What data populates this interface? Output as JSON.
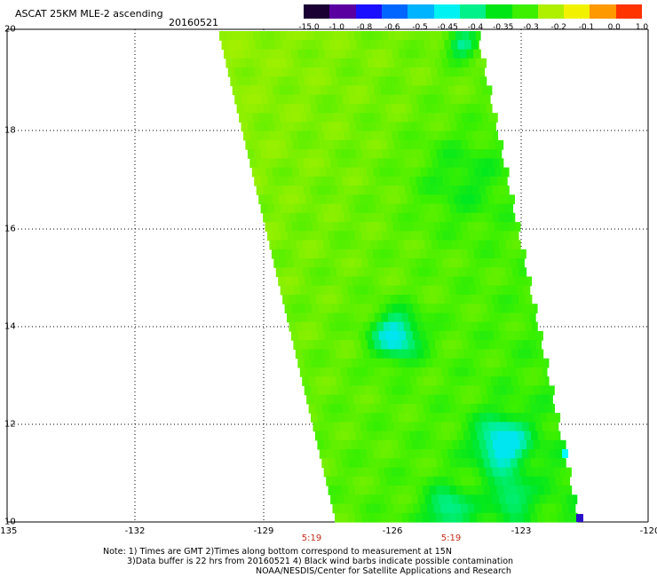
{
  "title": "ASCAT 25KM MLE-2 ascending",
  "date": "20160521",
  "colorbar": {
    "labels": [
      "-15.0",
      "-1.0",
      "-0.8",
      "-0.6",
      "-0.5",
      "-0.45",
      "-0.4",
      "-0.35",
      "-0.3",
      "-0.2",
      "-0.1",
      "0.0",
      "1.0"
    ],
    "colors": [
      "#1a0033",
      "#5a00a0",
      "#1a10ff",
      "#0066ff",
      "#00b4ff",
      "#00f2f2",
      "#00f08a",
      "#00e614",
      "#3cf000",
      "#aef000",
      "#f2f200",
      "#ff9900",
      "#ff3300"
    ]
  },
  "map": {
    "lon_ticks": [
      "-135",
      "-132",
      "-129",
      "-126",
      "-123",
      "-120"
    ],
    "lat_ticks": [
      "10",
      "12",
      "14",
      "16",
      "18",
      "20"
    ],
    "times": [
      "5:19",
      "5:19"
    ]
  },
  "notes": [
    "Note: 1) Times are GMT 2)Times along bottom correspond to measurement at 15N",
    "3)Data buffer is 22 hrs from 20160521 4) Black wind barbs indicate possible contamination",
    "NOAA/NESDIS/Center for Satellite Applications and Research"
  ]
}
